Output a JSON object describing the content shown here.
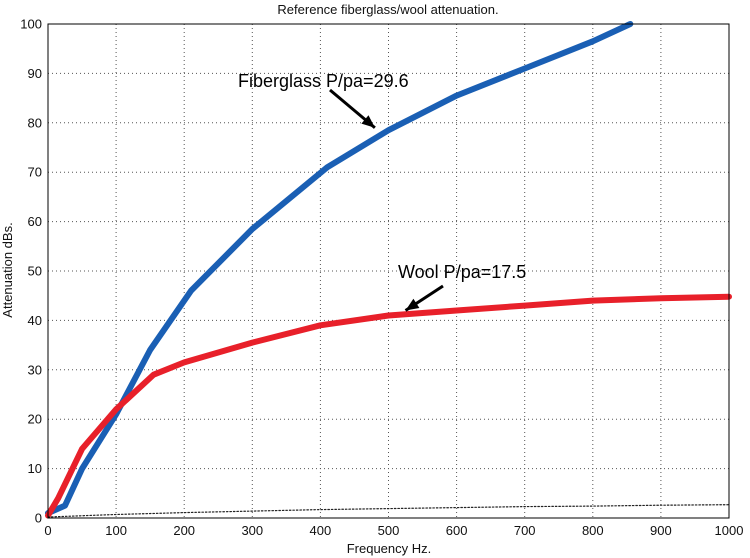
{
  "chart_data": {
    "type": "line",
    "title": "Reference fiberglass/wool attenuation.",
    "xlabel": "Frequency  Hz.",
    "ylabel": "Attenuation  dBs.",
    "xlim": [
      0,
      1000
    ],
    "ylim": [
      0,
      100
    ],
    "x_ticks": [
      "0",
      "100",
      "200",
      "300",
      "400",
      "500",
      "600",
      "700",
      "800",
      "900",
      "1000"
    ],
    "y_ticks": [
      "0",
      "10",
      "20",
      "30",
      "40",
      "50",
      "60",
      "70",
      "80",
      "90",
      "100"
    ],
    "grid": true,
    "series": [
      {
        "color": "#1a5fb4",
        "x": [
          0,
          25,
          50,
          100,
          150,
          210,
          300,
          410,
          500,
          600,
          700,
          800,
          855
        ],
        "values": [
          1,
          2.5,
          10,
          21,
          34,
          46,
          58.5,
          71,
          78.5,
          85.5,
          91,
          96.5,
          100
        ]
      },
      {
        "color": "#e8202a",
        "x": [
          0,
          15,
          50,
          100,
          155,
          200,
          300,
          400,
          500,
          600,
          700,
          800,
          900,
          1000
        ],
        "values": [
          0.5,
          4,
          14,
          22,
          29,
          31.5,
          35.5,
          39,
          41,
          42,
          43,
          44,
          44.5,
          44.8
        ]
      },
      {
        "color": "#222222",
        "x": [
          0,
          100,
          200,
          300,
          400,
          500,
          600,
          700,
          800,
          900,
          1000
        ],
        "values": [
          0.2,
          0.7,
          1.1,
          1.4,
          1.7,
          1.9,
          2.1,
          2.3,
          2.4,
          2.6,
          2.7
        ]
      }
    ],
    "annotations": [
      {
        "text": "Fiberglass P/pa=29.6",
        "points_to": {
          "x": 480,
          "y": 79
        }
      },
      {
        "text": "Wool  P/pa=17.5",
        "points_to": {
          "x": 525,
          "y": 42
        }
      }
    ]
  }
}
